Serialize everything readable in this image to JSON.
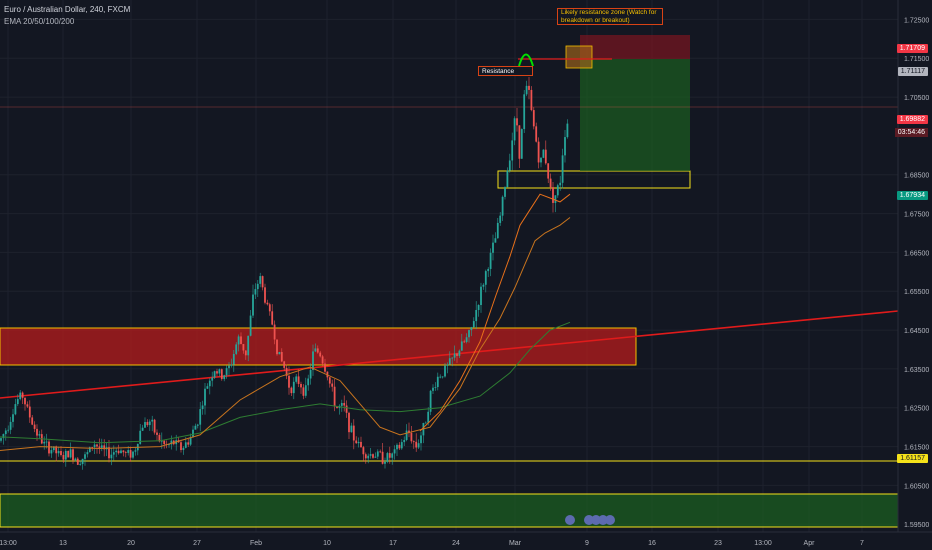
{
  "header": {
    "symbol_title": "Euro / Australian Dollar, 240, FXCM",
    "indicator_label": "EMA 20/50/100/200"
  },
  "chart_data": {
    "type": "candlestick",
    "title": "Euro / Australian Dollar, 240, FXCM",
    "ylim": [
      1.593,
      1.73
    ],
    "y_ticks": [
      "1.72500",
      "1.71500",
      "1.70500",
      "1.68500",
      "1.67500",
      "1.66500",
      "1.65500",
      "1.64500",
      "1.63500",
      "1.62500",
      "1.61500",
      "1.60500",
      "1.59500"
    ],
    "x_ticks": [
      "13:00",
      "13",
      "20",
      "27",
      "Feb",
      "10",
      "17",
      "24",
      "Mar",
      "9",
      "16",
      "23",
      "13:00",
      "Apr",
      "7"
    ],
    "price_labels": [
      {
        "text": "1.71709",
        "bg": "#f23645",
        "color": "#ffffff",
        "value": 1.71709
      },
      {
        "text": "1.71117",
        "bg": "#b2b5be",
        "color": "#131722",
        "value": 1.71117
      },
      {
        "text": "1.69882",
        "bg": "#f23645",
        "color": "#ffffff",
        "value": 1.69882
      },
      {
        "text": "1.67934",
        "bg": "#089981",
        "color": "#ffffff",
        "value": 1.67934
      },
      {
        "text": "1.61157",
        "bg": "#f5e21a",
        "color": "#131722",
        "value": 1.61157
      }
    ],
    "countdown": "03:54:46",
    "annotations": {
      "resistance_label": "Resistance",
      "zone_note": "Likely resistance zone (Watch for breakdown or breakout)"
    },
    "price_path": [
      [
        0,
        1.6165
      ],
      [
        8,
        1.6205
      ],
      [
        16,
        1.6265
      ],
      [
        22,
        1.6285
      ],
      [
        28,
        1.624
      ],
      [
        34,
        1.62
      ],
      [
        40,
        1.617
      ],
      [
        46,
        1.615
      ],
      [
        54,
        1.614
      ],
      [
        62,
        1.612
      ],
      [
        70,
        1.6135
      ],
      [
        78,
        1.6115
      ],
      [
        86,
        1.6125
      ],
      [
        94,
        1.616
      ],
      [
        102,
        1.614
      ],
      [
        110,
        1.613
      ],
      [
        118,
        1.6145
      ],
      [
        126,
        1.613
      ],
      [
        134,
        1.6135
      ],
      [
        142,
        1.6205
      ],
      [
        150,
        1.6215
      ],
      [
        158,
        1.617
      ],
      [
        166,
        1.615
      ],
      [
        174,
        1.616
      ],
      [
        182,
        1.6145
      ],
      [
        190,
        1.617
      ],
      [
        198,
        1.622
      ],
      [
        206,
        1.63
      ],
      [
        214,
        1.635
      ],
      [
        222,
        1.633
      ],
      [
        230,
        1.6355
      ],
      [
        238,
        1.643
      ],
      [
        246,
        1.639
      ],
      [
        254,
        1.655
      ],
      [
        260,
        1.6585
      ],
      [
        266,
        1.652
      ],
      [
        272,
        1.647
      ],
      [
        278,
        1.639
      ],
      [
        284,
        1.6355
      ],
      [
        290,
        1.63
      ],
      [
        298,
        1.632
      ],
      [
        306,
        1.629
      ],
      [
        314,
        1.64
      ],
      [
        320,
        1.639
      ],
      [
        328,
        1.633
      ],
      [
        336,
        1.625
      ],
      [
        344,
        1.625
      ],
      [
        352,
        1.618
      ],
      [
        360,
        1.615
      ],
      [
        368,
        1.613
      ],
      [
        376,
        1.613
      ],
      [
        384,
        1.612
      ],
      [
        392,
        1.6125
      ],
      [
        400,
        1.615
      ],
      [
        408,
        1.619
      ],
      [
        416,
        1.615
      ],
      [
        424,
        1.62
      ],
      [
        430,
        1.628
      ],
      [
        438,
        1.633
      ],
      [
        446,
        1.635
      ],
      [
        454,
        1.638
      ],
      [
        462,
        1.641
      ],
      [
        470,
        1.644
      ],
      [
        478,
        1.652
      ],
      [
        486,
        1.66
      ],
      [
        494,
        1.667
      ],
      [
        500,
        1.674
      ],
      [
        506,
        1.684
      ],
      [
        512,
        1.694
      ],
      [
        516,
        1.701
      ],
      [
        520,
        1.689
      ],
      [
        524,
        1.705
      ],
      [
        528,
        1.708
      ],
      [
        532,
        1.7
      ],
      [
        536,
        1.694
      ],
      [
        540,
        1.687
      ],
      [
        544,
        1.692
      ],
      [
        548,
        1.685
      ],
      [
        552,
        1.679
      ],
      [
        556,
        1.68
      ],
      [
        560,
        1.683
      ],
      [
        564,
        1.695
      ],
      [
        568,
        1.699
      ]
    ],
    "ema_20": [
      [
        420,
        1.619
      ],
      [
        440,
        1.624
      ],
      [
        460,
        1.632
      ],
      [
        480,
        1.642
      ],
      [
        496,
        1.654
      ],
      [
        510,
        1.664
      ],
      [
        520,
        1.672
      ],
      [
        530,
        1.676
      ],
      [
        540,
        1.68
      ],
      [
        550,
        1.679
      ],
      [
        560,
        1.678
      ],
      [
        570,
        1.68
      ]
    ],
    "ema_50": [
      [
        0,
        1.614
      ],
      [
        40,
        1.615
      ],
      [
        100,
        1.6145
      ],
      [
        160,
        1.615
      ],
      [
        200,
        1.618
      ],
      [
        240,
        1.627
      ],
      [
        280,
        1.633
      ],
      [
        310,
        1.6355
      ],
      [
        340,
        1.632
      ],
      [
        360,
        1.626
      ],
      [
        380,
        1.62
      ],
      [
        400,
        1.618
      ],
      [
        430,
        1.62
      ],
      [
        460,
        1.63
      ],
      [
        480,
        1.64
      ],
      [
        500,
        1.648
      ],
      [
        515,
        1.656
      ],
      [
        525,
        1.662
      ],
      [
        535,
        1.668
      ],
      [
        545,
        1.67
      ],
      [
        560,
        1.672
      ],
      [
        570,
        1.674
      ]
    ],
    "ema_200": [
      [
        0,
        1.6175
      ],
      [
        40,
        1.617
      ],
      [
        100,
        1.616
      ],
      [
        160,
        1.6165
      ],
      [
        200,
        1.6185
      ],
      [
        240,
        1.6225
      ],
      [
        280,
        1.6245
      ],
      [
        320,
        1.626
      ],
      [
        360,
        1.6245
      ],
      [
        400,
        1.624
      ],
      [
        440,
        1.625
      ],
      [
        480,
        1.628
      ],
      [
        510,
        1.634
      ],
      [
        530,
        1.64
      ],
      [
        550,
        1.645
      ],
      [
        570,
        1.647
      ]
    ]
  },
  "colors": {
    "background": "#131722",
    "up": "#26a69a",
    "down": "#ef5350",
    "ema20": "#e8701a",
    "ema50": "#43a047",
    "trendline": "#e01b1b",
    "resistance_zone": "#b71c1c",
    "support_zone": "#1b5e20",
    "yellow": "#f5e21a"
  }
}
